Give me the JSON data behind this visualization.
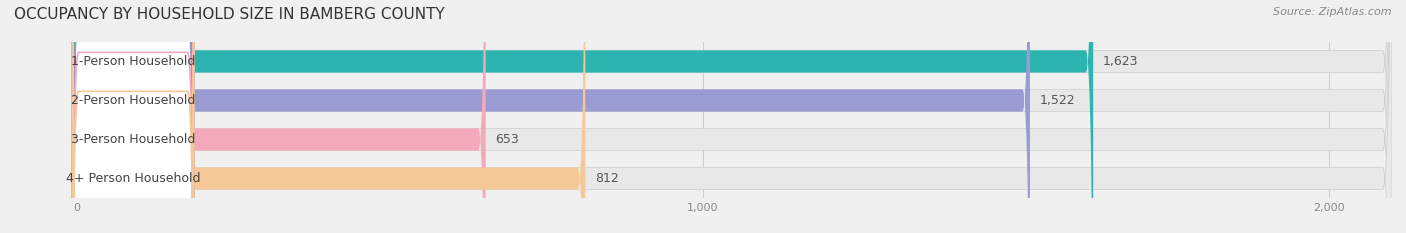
{
  "title": "OCCUPANCY BY HOUSEHOLD SIZE IN BAMBERG COUNTY",
  "source": "Source: ZipAtlas.com",
  "categories": [
    "1-Person Household",
    "2-Person Household",
    "3-Person Household",
    "4+ Person Household"
  ],
  "values": [
    1623,
    1522,
    653,
    812
  ],
  "bar_colors": [
    "#2db3b0",
    "#9b9bd4",
    "#f4a8bb",
    "#f5c898"
  ],
  "bar_edge_colors": [
    "#2db3b0",
    "#9b9bd4",
    "#f4a8bb",
    "#f5c898"
  ],
  "label_bg_colors": [
    "#e0f5f5",
    "#e8e8f8",
    "#fce8ef",
    "#fdf0e0"
  ],
  "label_border_colors": [
    "#2db3b0",
    "#9b9bd4",
    "#f4a8bb",
    "#f5c898"
  ],
  "xlim": [
    -100,
    2100
  ],
  "xticks": [
    0,
    1000,
    2000
  ],
  "background_color": "#f0f0f0",
  "bar_background_color": "#e8e8e8",
  "title_fontsize": 11,
  "source_fontsize": 8,
  "label_fontsize": 9,
  "value_fontsize": 9
}
